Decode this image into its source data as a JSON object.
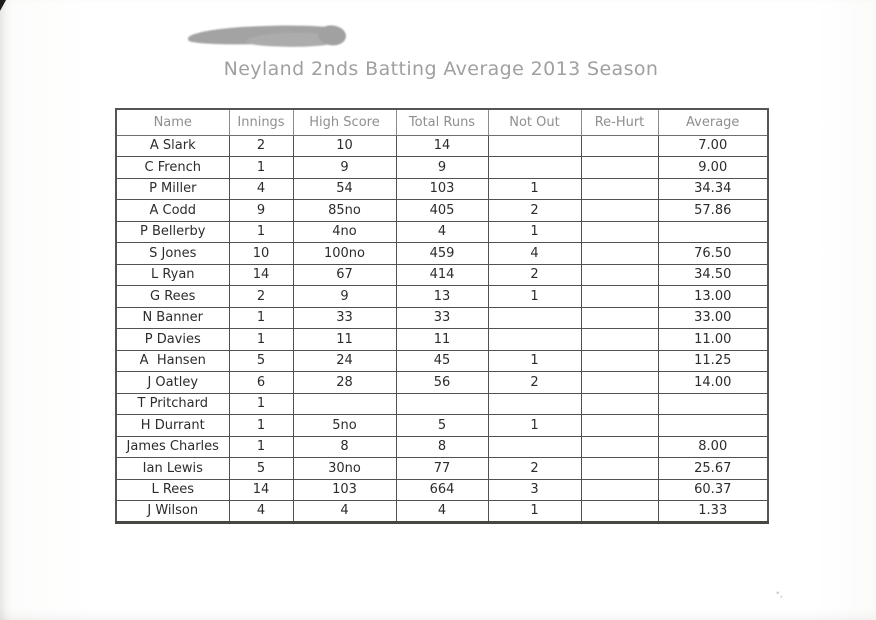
{
  "page": {
    "title": "Neyland 2nds Batting Average 2013 Season"
  },
  "colors": {
    "title_gray": "#a0a0a0",
    "header_text_gray": "#8f8f8f",
    "body_text": "#2c2c2c",
    "table_border": "#51514e",
    "smudge_gray": "#9c9c9c",
    "paper": "#ffffff"
  },
  "table": {
    "columns": [
      {
        "key": "name",
        "label": "Name"
      },
      {
        "key": "innings",
        "label": "Innings"
      },
      {
        "key": "high_score",
        "label": "High Score"
      },
      {
        "key": "total_runs",
        "label": "Total Runs"
      },
      {
        "key": "not_out",
        "label": "Not Out"
      },
      {
        "key": "re_hurt",
        "label": "Re-Hurt"
      },
      {
        "key": "average",
        "label": "Average"
      }
    ],
    "rows": [
      {
        "name": "A Slark",
        "innings": "2",
        "high_score": "10",
        "total_runs": "14",
        "not_out": "",
        "re_hurt": "",
        "average": "7.00"
      },
      {
        "name": "C French",
        "innings": "1",
        "high_score": "9",
        "total_runs": "9",
        "not_out": "",
        "re_hurt": "",
        "average": "9.00"
      },
      {
        "name": "P Miller",
        "innings": "4",
        "high_score": "54",
        "total_runs": "103",
        "not_out": "1",
        "re_hurt": "",
        "average": "34.34"
      },
      {
        "name": "A Codd",
        "innings": "9",
        "high_score": "85no",
        "total_runs": "405",
        "not_out": "2",
        "re_hurt": "",
        "average": "57.86"
      },
      {
        "name": "P Bellerby",
        "innings": "1",
        "high_score": "4no",
        "total_runs": "4",
        "not_out": "1",
        "re_hurt": "",
        "average": ""
      },
      {
        "name": "S Jones",
        "innings": "10",
        "high_score": "100no",
        "total_runs": "459",
        "not_out": "4",
        "re_hurt": "",
        "average": "76.50"
      },
      {
        "name": "L Ryan",
        "innings": "14",
        "high_score": "67",
        "total_runs": "414",
        "not_out": "2",
        "re_hurt": "",
        "average": "34.50"
      },
      {
        "name": "G Rees",
        "innings": "2",
        "high_score": "9",
        "total_runs": "13",
        "not_out": "1",
        "re_hurt": "",
        "average": "13.00"
      },
      {
        "name": "N Banner",
        "innings": "1",
        "high_score": "33",
        "total_runs": "33",
        "not_out": "",
        "re_hurt": "",
        "average": "33.00"
      },
      {
        "name": "P Davies",
        "innings": "1",
        "high_score": "11",
        "total_runs": "11",
        "not_out": "",
        "re_hurt": "",
        "average": "11.00"
      },
      {
        "name": "A  Hansen",
        "innings": "5",
        "high_score": "24",
        "total_runs": "45",
        "not_out": "1",
        "re_hurt": "",
        "average": "11.25"
      },
      {
        "name": "J Oatley",
        "innings": "6",
        "high_score": "28",
        "total_runs": "56",
        "not_out": "2",
        "re_hurt": "",
        "average": "14.00"
      },
      {
        "name": "T Pritchard",
        "innings": "1",
        "high_score": "",
        "total_runs": "",
        "not_out": "",
        "re_hurt": "",
        "average": ""
      },
      {
        "name": "H Durrant",
        "innings": "1",
        "high_score": "5no",
        "total_runs": "5",
        "not_out": "1",
        "re_hurt": "",
        "average": ""
      },
      {
        "name": "James Charles",
        "innings": "1",
        "high_score": "8",
        "total_runs": "8",
        "not_out": "",
        "re_hurt": "",
        "average": "8.00"
      },
      {
        "name": "Ian Lewis",
        "innings": "5",
        "high_score": "30no",
        "total_runs": "77",
        "not_out": "2",
        "re_hurt": "",
        "average": "25.67"
      },
      {
        "name": "L Rees",
        "innings": "14",
        "high_score": "103",
        "total_runs": "664",
        "not_out": "3",
        "re_hurt": "",
        "average": "60.37"
      },
      {
        "name": "J Wilson",
        "innings": "4",
        "high_score": "4",
        "total_runs": "4",
        "not_out": "1",
        "re_hurt": "",
        "average": "1.33"
      }
    ]
  }
}
